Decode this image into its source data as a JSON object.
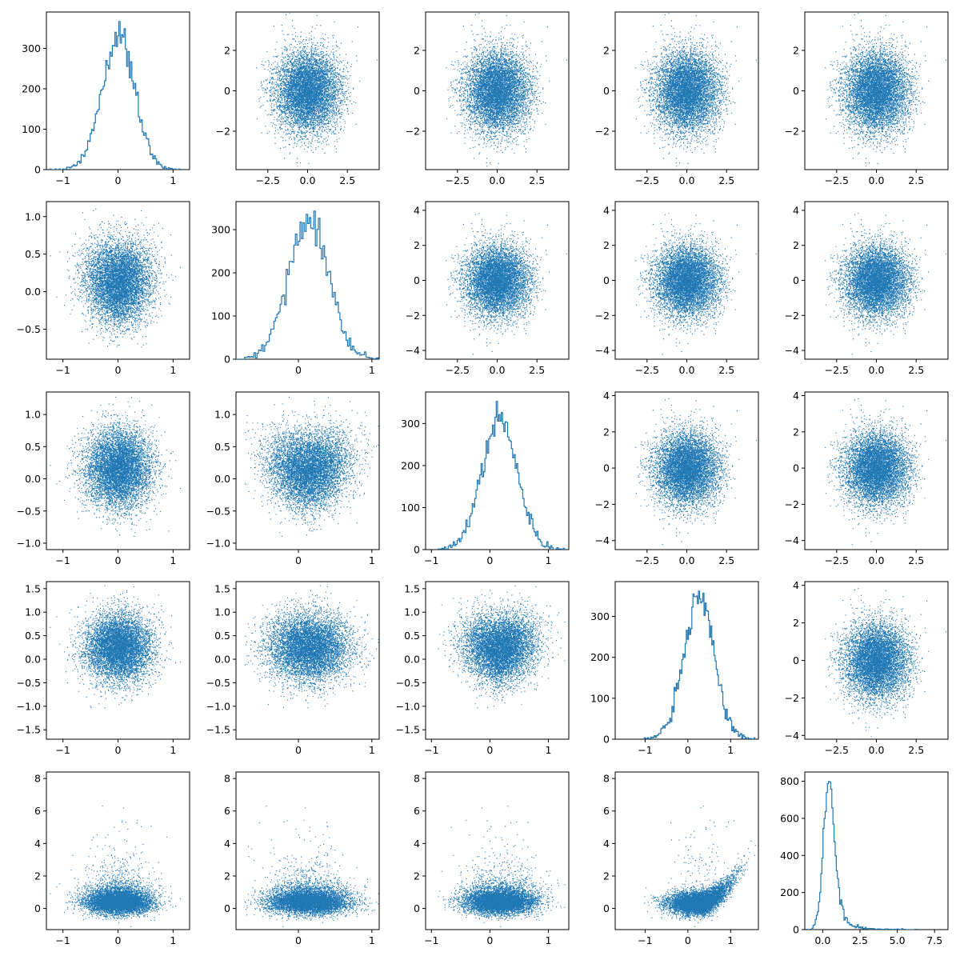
{
  "chart_data": {
    "type": "scatter",
    "layout": "5x5 pair plot (histograms on diagonal, scatter off-diagonal)",
    "color": "#1f77b4",
    "variables": [
      {
        "index": 0,
        "distribution": "normal",
        "mean": 0.0,
        "std": 0.3,
        "range": [
          -1.3,
          1.3
        ],
        "ticks": [
          -1,
          0,
          1
        ],
        "hist_ylim": [
          0,
          390
        ],
        "hist_yticks": [
          0,
          100,
          200,
          300
        ]
      },
      {
        "index": 1,
        "distribution": "normal",
        "mean": 0.1,
        "std": 0.27,
        "range": [
          -0.85,
          1.1
        ],
        "ticks": [
          0,
          1
        ],
        "hist_ylim": [
          0,
          365
        ],
        "hist_yticks": [
          0,
          100,
          200,
          300
        ]
      },
      {
        "index": 2,
        "distribution": "normal",
        "mean": 0.1,
        "std": 0.3,
        "range": [
          -1.1,
          1.35
        ],
        "ticks": [
          -1,
          0,
          1
        ],
        "hist_ylim": [
          0,
          375
        ],
        "hist_yticks": [
          0,
          100,
          200,
          300
        ]
      },
      {
        "index": 3,
        "distribution": "normal",
        "mean": 0.2,
        "std": 0.35,
        "range": [
          -1.7,
          1.65
        ],
        "ticks": [
          -1,
          0,
          1
        ],
        "hist_ylim": [
          0,
          385
        ],
        "hist_yticks": [
          0,
          100,
          200,
          300
        ]
      },
      {
        "index": 4,
        "distribution": "skewed",
        "mean": 0.4,
        "std": 0.5,
        "range": [
          -1.2,
          8.4
        ],
        "ticks": [
          0.0,
          2.5,
          5.0,
          7.5
        ],
        "hist_ylim": [
          0,
          850
        ],
        "hist_yticks": [
          0,
          200,
          400,
          600,
          800
        ]
      }
    ],
    "noise": {
      "distribution": "normal",
      "mean": 0.0,
      "std": 1.0,
      "xlim": [
        -4.5,
        4.5
      ],
      "xticks": [
        -2.5,
        0.0,
        2.5
      ],
      "ylims_by_row": [
        [
          -3.9,
          3.9
        ],
        [
          -4.5,
          4.5
        ],
        [
          -4.5,
          4.2
        ],
        [
          -4.2,
          4.2
        ]
      ],
      "yticks_by_row": [
        [
          -2,
          0,
          2
        ],
        [
          -4,
          -2,
          0,
          2,
          4
        ],
        [
          -4,
          -2,
          0,
          2,
          4
        ],
        [
          -4,
          -2,
          0,
          2,
          4
        ]
      ]
    },
    "row_ylims": [
      [
        -0.9,
        1.2
      ],
      [
        -1.1,
        1.35
      ],
      [
        -1.7,
        1.65
      ]
    ],
    "row_yticks": [
      [
        -0.5,
        0.0,
        0.5,
        1.0
      ],
      [
        -1.0,
        -0.5,
        0.0,
        0.5,
        1.0
      ],
      [
        -1.5,
        -1.0,
        -0.5,
        0.0,
        0.5,
        1.0,
        1.5
      ]
    ],
    "bottom_row_ylim": [
      -1.3,
      8.4
    ],
    "bottom_row_yticks": [
      0,
      2,
      4,
      6,
      8
    ],
    "samples_per_panel": 10000,
    "title": "",
    "xlabel": "",
    "ylabel": ""
  }
}
